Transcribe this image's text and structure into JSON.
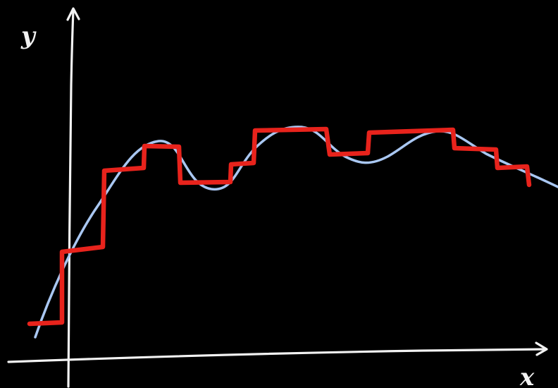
{
  "labels": {
    "x_axis": "x",
    "y_axis": "y"
  },
  "colors": {
    "background": "#000000",
    "axes": "#f2f2f2",
    "smooth_curve": "#a9c7f2",
    "step_approximation": "#e8231c"
  }
}
